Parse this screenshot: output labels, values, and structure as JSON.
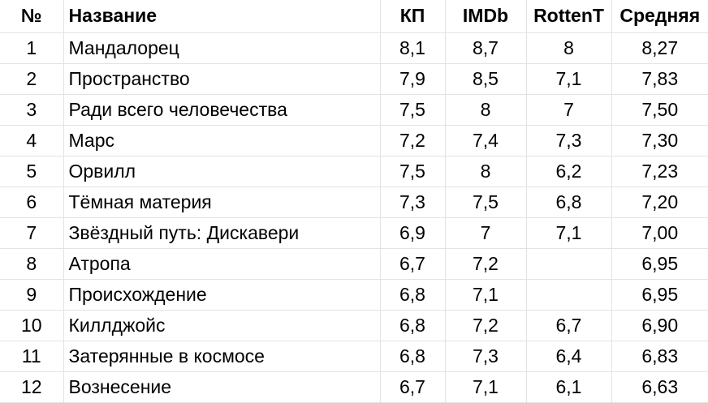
{
  "table": {
    "headers": {
      "num": "№",
      "name": "Название",
      "kp": "КП",
      "imdb": "IMDb",
      "rt": "RottenT",
      "avg": "Средняя"
    },
    "rows": [
      {
        "num": "1",
        "name": "Мандалорец",
        "kp": "8,1",
        "imdb": "8,7",
        "rt": "8",
        "avg": "8,27"
      },
      {
        "num": "2",
        "name": "Пространство",
        "kp": "7,9",
        "imdb": "8,5",
        "rt": "7,1",
        "avg": "7,83"
      },
      {
        "num": "3",
        "name": "Ради всего человечества",
        "kp": "7,5",
        "imdb": "8",
        "rt": "7",
        "avg": "7,50"
      },
      {
        "num": "4",
        "name": "Марс",
        "kp": "7,2",
        "imdb": "7,4",
        "rt": "7,3",
        "avg": "7,30"
      },
      {
        "num": "5",
        "name": "Орвилл",
        "kp": "7,5",
        "imdb": "8",
        "rt": "6,2",
        "avg": "7,23"
      },
      {
        "num": "6",
        "name": "Тёмная материя",
        "kp": "7,3",
        "imdb": "7,5",
        "rt": "6,8",
        "avg": "7,20"
      },
      {
        "num": "7",
        "name": "Звёздный путь: Дискавери",
        "kp": "6,9",
        "imdb": "7",
        "rt": "7,1",
        "avg": "7,00"
      },
      {
        "num": "8",
        "name": "Атропа",
        "kp": "6,7",
        "imdb": "7,2",
        "rt": "",
        "avg": "6,95"
      },
      {
        "num": "9",
        "name": "Происхождение",
        "kp": "6,8",
        "imdb": "7,1",
        "rt": "",
        "avg": "6,95"
      },
      {
        "num": "10",
        "name": "Киллджойс",
        "kp": "6,8",
        "imdb": "7,2",
        "rt": "6,7",
        "avg": "6,90"
      },
      {
        "num": "11",
        "name": "Затерянные в космосе",
        "kp": "6,8",
        "imdb": "7,3",
        "rt": "6,4",
        "avg": "6,83"
      },
      {
        "num": "12",
        "name": "Вознесение",
        "kp": "6,7",
        "imdb": "7,1",
        "rt": "6,1",
        "avg": "6,63"
      }
    ]
  }
}
